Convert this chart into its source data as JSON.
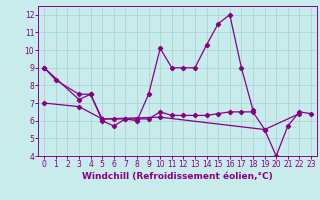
{
  "xlabel": "Windchill (Refroidissement éolien,°C)",
  "bg_color": "#c8ecec",
  "grid_color": "#b0d8d8",
  "line_color": "#880088",
  "xlim": [
    -0.5,
    23.5
  ],
  "ylim": [
    4,
    12.5
  ],
  "xticks": [
    0,
    1,
    2,
    3,
    4,
    5,
    6,
    7,
    8,
    9,
    10,
    11,
    12,
    13,
    14,
    15,
    16,
    17,
    18,
    19,
    20,
    21,
    22,
    23
  ],
  "yticks": [
    4,
    5,
    6,
    7,
    8,
    9,
    10,
    11,
    12
  ],
  "line1_x": [
    0,
    1,
    3,
    4,
    5,
    6,
    7,
    8,
    9,
    10,
    11,
    12,
    13,
    14,
    15,
    16,
    17,
    18
  ],
  "line1_y": [
    9.0,
    8.3,
    7.5,
    7.5,
    6.0,
    5.7,
    6.1,
    6.0,
    7.5,
    10.1,
    9.0,
    9.0,
    9.0,
    10.3,
    11.5,
    12.0,
    9.0,
    6.6
  ],
  "line2_x": [
    0,
    3,
    4,
    5,
    6,
    7,
    8,
    9,
    10,
    11,
    12,
    13,
    14,
    15,
    16,
    17,
    18,
    19,
    20,
    21,
    22,
    23
  ],
  "line2_y": [
    9.0,
    7.2,
    7.5,
    6.1,
    6.1,
    6.1,
    6.1,
    6.1,
    6.5,
    6.3,
    6.3,
    6.3,
    6.3,
    6.4,
    6.5,
    6.5,
    6.5,
    5.5,
    4.0,
    5.7,
    6.5,
    6.4
  ],
  "line3_x": [
    0,
    3,
    5,
    10,
    19,
    22
  ],
  "line3_y": [
    7.0,
    6.8,
    6.1,
    6.2,
    5.5,
    6.4
  ],
  "tick_fontsize": 5.5,
  "xlabel_fontsize": 6.5
}
